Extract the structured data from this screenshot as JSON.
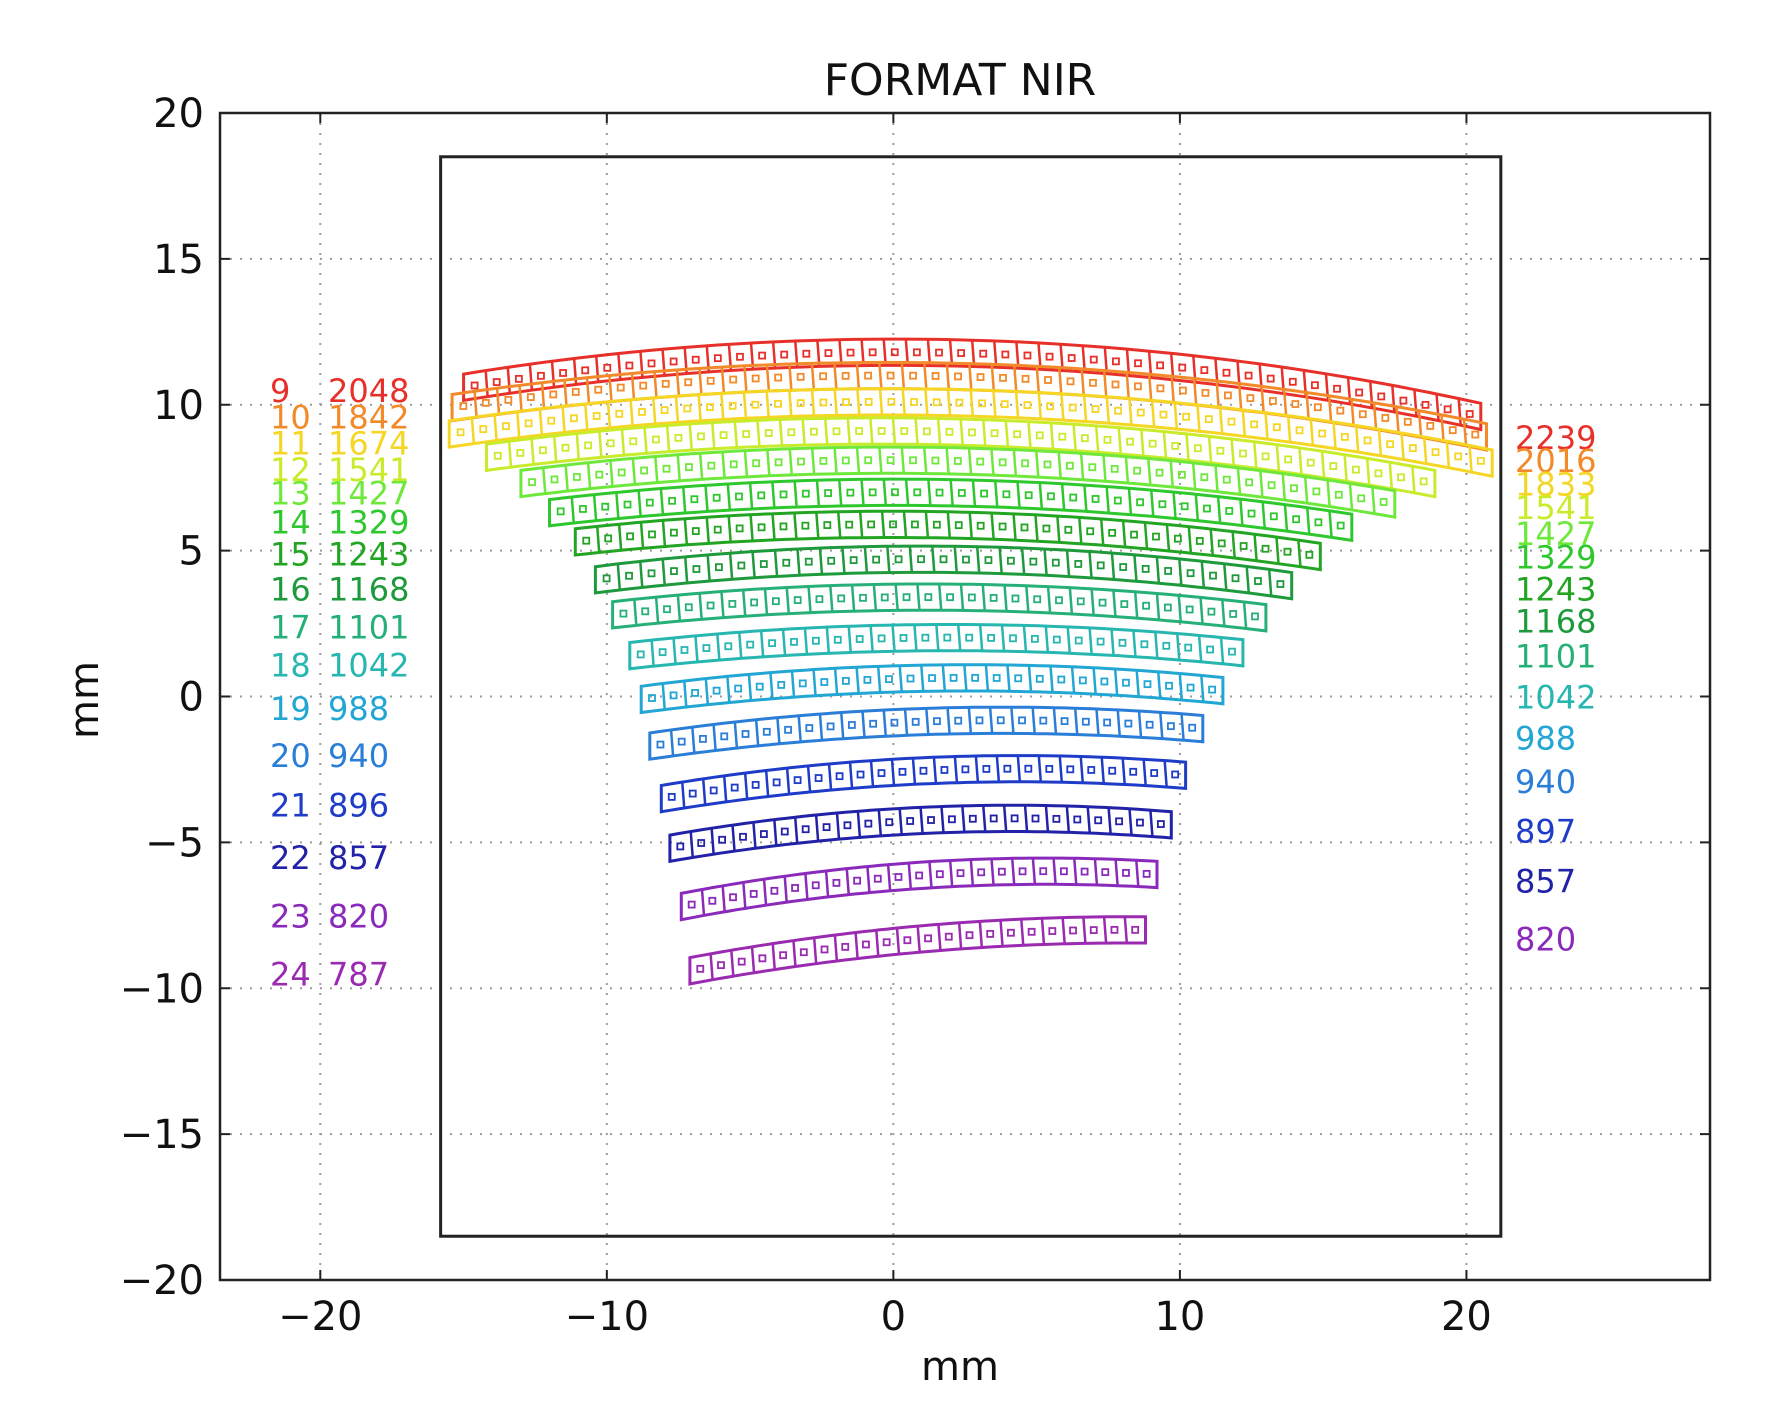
{
  "chart_data": {
    "type": "scatter",
    "title": "FORMAT NIR",
    "xlabel": "mm",
    "ylabel": "mm",
    "xlim": [
      -23.5,
      28.5
    ],
    "ylim": [
      -20,
      20
    ],
    "xticks": [
      -20,
      -10,
      0,
      10,
      20
    ],
    "yticks": [
      -20,
      -15,
      -10,
      -5,
      0,
      5,
      10,
      15,
      20
    ],
    "xtick_labels": [
      "−20",
      "−10",
      "0",
      "10",
      "20"
    ],
    "ytick_labels": [
      "−20",
      "−15",
      "−10",
      "−5",
      "0",
      "5",
      "10",
      "15",
      "20"
    ],
    "grid": true,
    "detector_box": {
      "x": [
        -15.8,
        21.2
      ],
      "y": [
        -18.5,
        18.5
      ]
    },
    "series": [
      {
        "order": "9",
        "left_wavelength": "2048",
        "right_wavelength": "2239",
        "color": "#e8302a",
        "x_start": -15.0,
        "x_end": 20.5,
        "y_left": 10.6,
        "y_mid": 11.8,
        "y_right": 9.6,
        "label_y_left": 10.5,
        "label_y_right": 8.9,
        "segments": 46
      },
      {
        "order": "10",
        "left_wavelength": "1842",
        "right_wavelength": "2016",
        "color": "#f28a2a",
        "x_start": -15.4,
        "x_end": 20.7,
        "y_left": 9.9,
        "y_mid": 11.0,
        "y_right": 8.9,
        "label_y_left": 9.6,
        "label_y_right": 8.1,
        "segments": 46
      },
      {
        "order": "11",
        "left_wavelength": "1674",
        "right_wavelength": "1833",
        "color": "#f5d624",
        "x_start": -15.5,
        "x_end": 20.9,
        "y_left": 9.0,
        "y_mid": 10.1,
        "y_right": 8.0,
        "label_y_left": 8.7,
        "label_y_right": 7.3,
        "segments": 46
      },
      {
        "order": "12",
        "left_wavelength": "1541",
        "right_wavelength": "1541",
        "color": "#c8ec2c",
        "x_start": -14.2,
        "x_end": 18.9,
        "y_left": 8.2,
        "y_mid": 9.1,
        "y_right": 7.3,
        "label_y_left": 7.8,
        "label_y_right": 6.5,
        "segments": 42
      },
      {
        "order": "13",
        "left_wavelength": "1427",
        "right_wavelength": "1427",
        "color": "#6fe83c",
        "x_start": -13.0,
        "x_end": 17.5,
        "y_left": 7.3,
        "y_mid": 8.1,
        "y_right": 6.6,
        "label_y_left": 7.0,
        "label_y_right": 5.6,
        "segments": 39
      },
      {
        "order": "14",
        "left_wavelength": "1329",
        "right_wavelength": "1329",
        "color": "#2ec82e",
        "x_start": -12.0,
        "x_end": 16.0,
        "y_left": 6.3,
        "y_mid": 7.0,
        "y_right": 5.8,
        "label_y_left": 6.0,
        "label_y_right": 4.8,
        "segments": 36
      },
      {
        "order": "15",
        "left_wavelength": "1243",
        "right_wavelength": "1243",
        "color": "#23a523",
        "x_start": -11.1,
        "x_end": 14.9,
        "y_left": 5.3,
        "y_mid": 5.9,
        "y_right": 4.8,
        "label_y_left": 4.9,
        "label_y_right": 3.7,
        "segments": 34
      },
      {
        "order": "16",
        "left_wavelength": "1168",
        "right_wavelength": "1168",
        "color": "#1e9a3c",
        "x_start": -10.4,
        "x_end": 13.9,
        "y_left": 4.0,
        "y_mid": 4.7,
        "y_right": 3.8,
        "label_y_left": 3.7,
        "label_y_right": 2.6,
        "segments": 31
      },
      {
        "order": "17",
        "left_wavelength": "1101",
        "right_wavelength": "1101",
        "color": "#26b078",
        "x_start": -9.8,
        "x_end": 13.0,
        "y_left": 2.8,
        "y_mid": 3.4,
        "y_right": 2.7,
        "label_y_left": 2.4,
        "label_y_right": 1.4,
        "segments": 30
      },
      {
        "order": "18",
        "left_wavelength": "1042",
        "right_wavelength": "1042",
        "color": "#27b6b0",
        "x_start": -9.2,
        "x_end": 12.2,
        "y_left": 1.4,
        "y_mid": 2.0,
        "y_right": 1.5,
        "label_y_left": 1.1,
        "label_y_right": 0.0,
        "segments": 28
      },
      {
        "order": "19",
        "left_wavelength": "988",
        "right_wavelength": "988",
        "color": "#22a6d4",
        "x_start": -8.8,
        "x_end": 11.5,
        "y_left": -0.1,
        "y_mid": 0.6,
        "y_right": 0.2,
        "label_y_left": -0.4,
        "label_y_right": -1.4,
        "segments": 27
      },
      {
        "order": "20",
        "left_wavelength": "940",
        "right_wavelength": "940",
        "color": "#2a7ed8",
        "x_start": -8.5,
        "x_end": 10.8,
        "y_left": -1.7,
        "y_mid": -0.9,
        "y_right": -1.1,
        "label_y_left": -2.0,
        "label_y_right": -2.9,
        "segments": 26
      },
      {
        "order": "21",
        "left_wavelength": "896",
        "right_wavelength": "897",
        "color": "#1e3cc8",
        "x_start": -8.1,
        "x_end": 10.2,
        "y_left": -3.5,
        "y_mid": -2.6,
        "y_right": -2.7,
        "label_y_left": -3.7,
        "label_y_right": -4.6,
        "segments": 25
      },
      {
        "order": "22",
        "left_wavelength": "857",
        "right_wavelength": "857",
        "color": "#2222a8",
        "x_start": -7.8,
        "x_end": 9.7,
        "y_left": -5.2,
        "y_mid": -4.3,
        "y_right": -4.4,
        "label_y_left": -5.5,
        "label_y_right": -6.3,
        "segments": 24
      },
      {
        "order": "23",
        "left_wavelength": "820",
        "right_wavelength": "820",
        "color": "#8a2abb",
        "x_start": -7.4,
        "x_end": 9.2,
        "y_left": -7.2,
        "y_mid": -6.2,
        "y_right": -6.1,
        "label_y_left": -7.5,
        "label_y_right": -8.3,
        "segments": 23
      },
      {
        "order": "24",
        "left_wavelength": "787",
        "right_wavelength": "",
        "color": "#9a2ab0",
        "x_start": -7.1,
        "x_end": 8.8,
        "y_left": -9.4,
        "y_mid": -8.4,
        "y_right": -8.0,
        "label_y_left": -9.5,
        "label_y_right": null,
        "segments": 22
      }
    ]
  }
}
